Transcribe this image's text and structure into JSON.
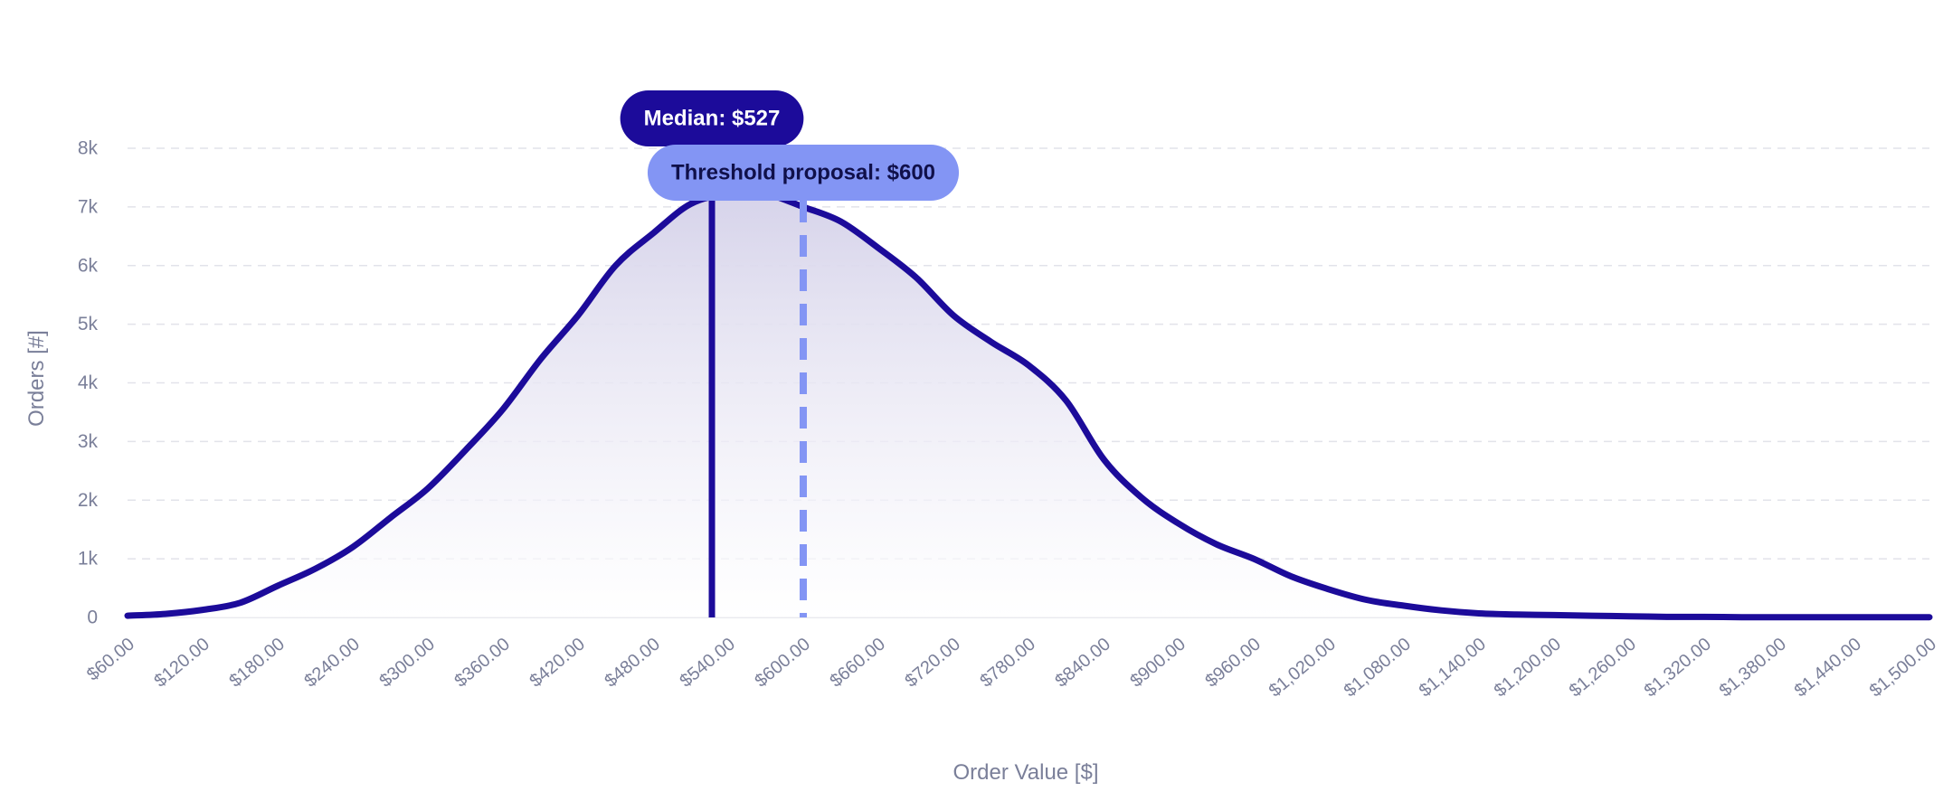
{
  "chart_data": {
    "type": "area",
    "xlabel": "Order Value [$]",
    "ylabel": "Orders [#]",
    "xlim": [
      60,
      1500
    ],
    "ylim": [
      0,
      8000
    ],
    "grid": true,
    "y_ticks": [
      {
        "value": 0,
        "label": "0"
      },
      {
        "value": 1000,
        "label": "1k"
      },
      {
        "value": 2000,
        "label": "2k"
      },
      {
        "value": 3000,
        "label": "3k"
      },
      {
        "value": 4000,
        "label": "4k"
      },
      {
        "value": 5000,
        "label": "5k"
      },
      {
        "value": 6000,
        "label": "6k"
      },
      {
        "value": 7000,
        "label": "7k"
      },
      {
        "value": 8000,
        "label": "8k"
      }
    ],
    "x_ticks": [
      {
        "value": 60,
        "label": "$60.00"
      },
      {
        "value": 120,
        "label": "$120.00"
      },
      {
        "value": 180,
        "label": "$180.00"
      },
      {
        "value": 240,
        "label": "$240.00"
      },
      {
        "value": 300,
        "label": "$300.00"
      },
      {
        "value": 360,
        "label": "$360.00"
      },
      {
        "value": 420,
        "label": "$420.00"
      },
      {
        "value": 480,
        "label": "$480.00"
      },
      {
        "value": 540,
        "label": "$540.00"
      },
      {
        "value": 600,
        "label": "$600.00"
      },
      {
        "value": 660,
        "label": "$660.00"
      },
      {
        "value": 720,
        "label": "$720.00"
      },
      {
        "value": 780,
        "label": "$780.00"
      },
      {
        "value": 840,
        "label": "$840.00"
      },
      {
        "value": 900,
        "label": "$900.00"
      },
      {
        "value": 960,
        "label": "$960.00"
      },
      {
        "value": 1020,
        "label": "$1,020.00"
      },
      {
        "value": 1080,
        "label": "$1,080.00"
      },
      {
        "value": 1140,
        "label": "$1,140.00"
      },
      {
        "value": 1200,
        "label": "$1,200.00"
      },
      {
        "value": 1260,
        "label": "$1,260.00"
      },
      {
        "value": 1320,
        "label": "$1,320.00"
      },
      {
        "value": 1380,
        "label": "$1,380.00"
      },
      {
        "value": 1440,
        "label": "$1,440.00"
      },
      {
        "value": 1500,
        "label": "$1,500.00"
      }
    ],
    "series": [
      {
        "x": [
          60,
          90,
          120,
          150,
          180,
          210,
          240,
          270,
          300,
          330,
          360,
          390,
          420,
          450,
          480,
          510,
          540,
          570,
          600,
          630,
          660,
          690,
          720,
          750,
          780,
          810,
          840,
          870,
          900,
          930,
          960,
          990,
          1020,
          1050,
          1080,
          1110,
          1140,
          1170,
          1200,
          1230,
          1260,
          1290,
          1320,
          1350,
          1380,
          1410,
          1440,
          1470,
          1500
        ],
        "values": [
          30,
          60,
          130,
          250,
          540,
          830,
          1200,
          1700,
          2200,
          2850,
          3550,
          4400,
          5150,
          6000,
          6550,
          7050,
          7220,
          7220,
          7000,
          6750,
          6300,
          5800,
          5150,
          4700,
          4300,
          3700,
          2700,
          2050,
          1600,
          1250,
          1000,
          700,
          480,
          300,
          200,
          120,
          70,
          50,
          40,
          30,
          20,
          10,
          10,
          5,
          5,
          5,
          5,
          5,
          5
        ]
      }
    ],
    "annotations": [
      {
        "x": 527,
        "label": "Median: $527",
        "style": "solid"
      },
      {
        "x": 600,
        "label": "Threshold proposal: $600",
        "style": "dashed"
      }
    ]
  },
  "colors": {
    "line": "#1c0b9a",
    "fill_top": "#d6d3ea",
    "threshold": "#8395f4",
    "median_label_text": "#ffffff",
    "threshold_label_text": "#10104a",
    "axis_text": "#7a7f99",
    "grid": "#e2e3ea"
  }
}
